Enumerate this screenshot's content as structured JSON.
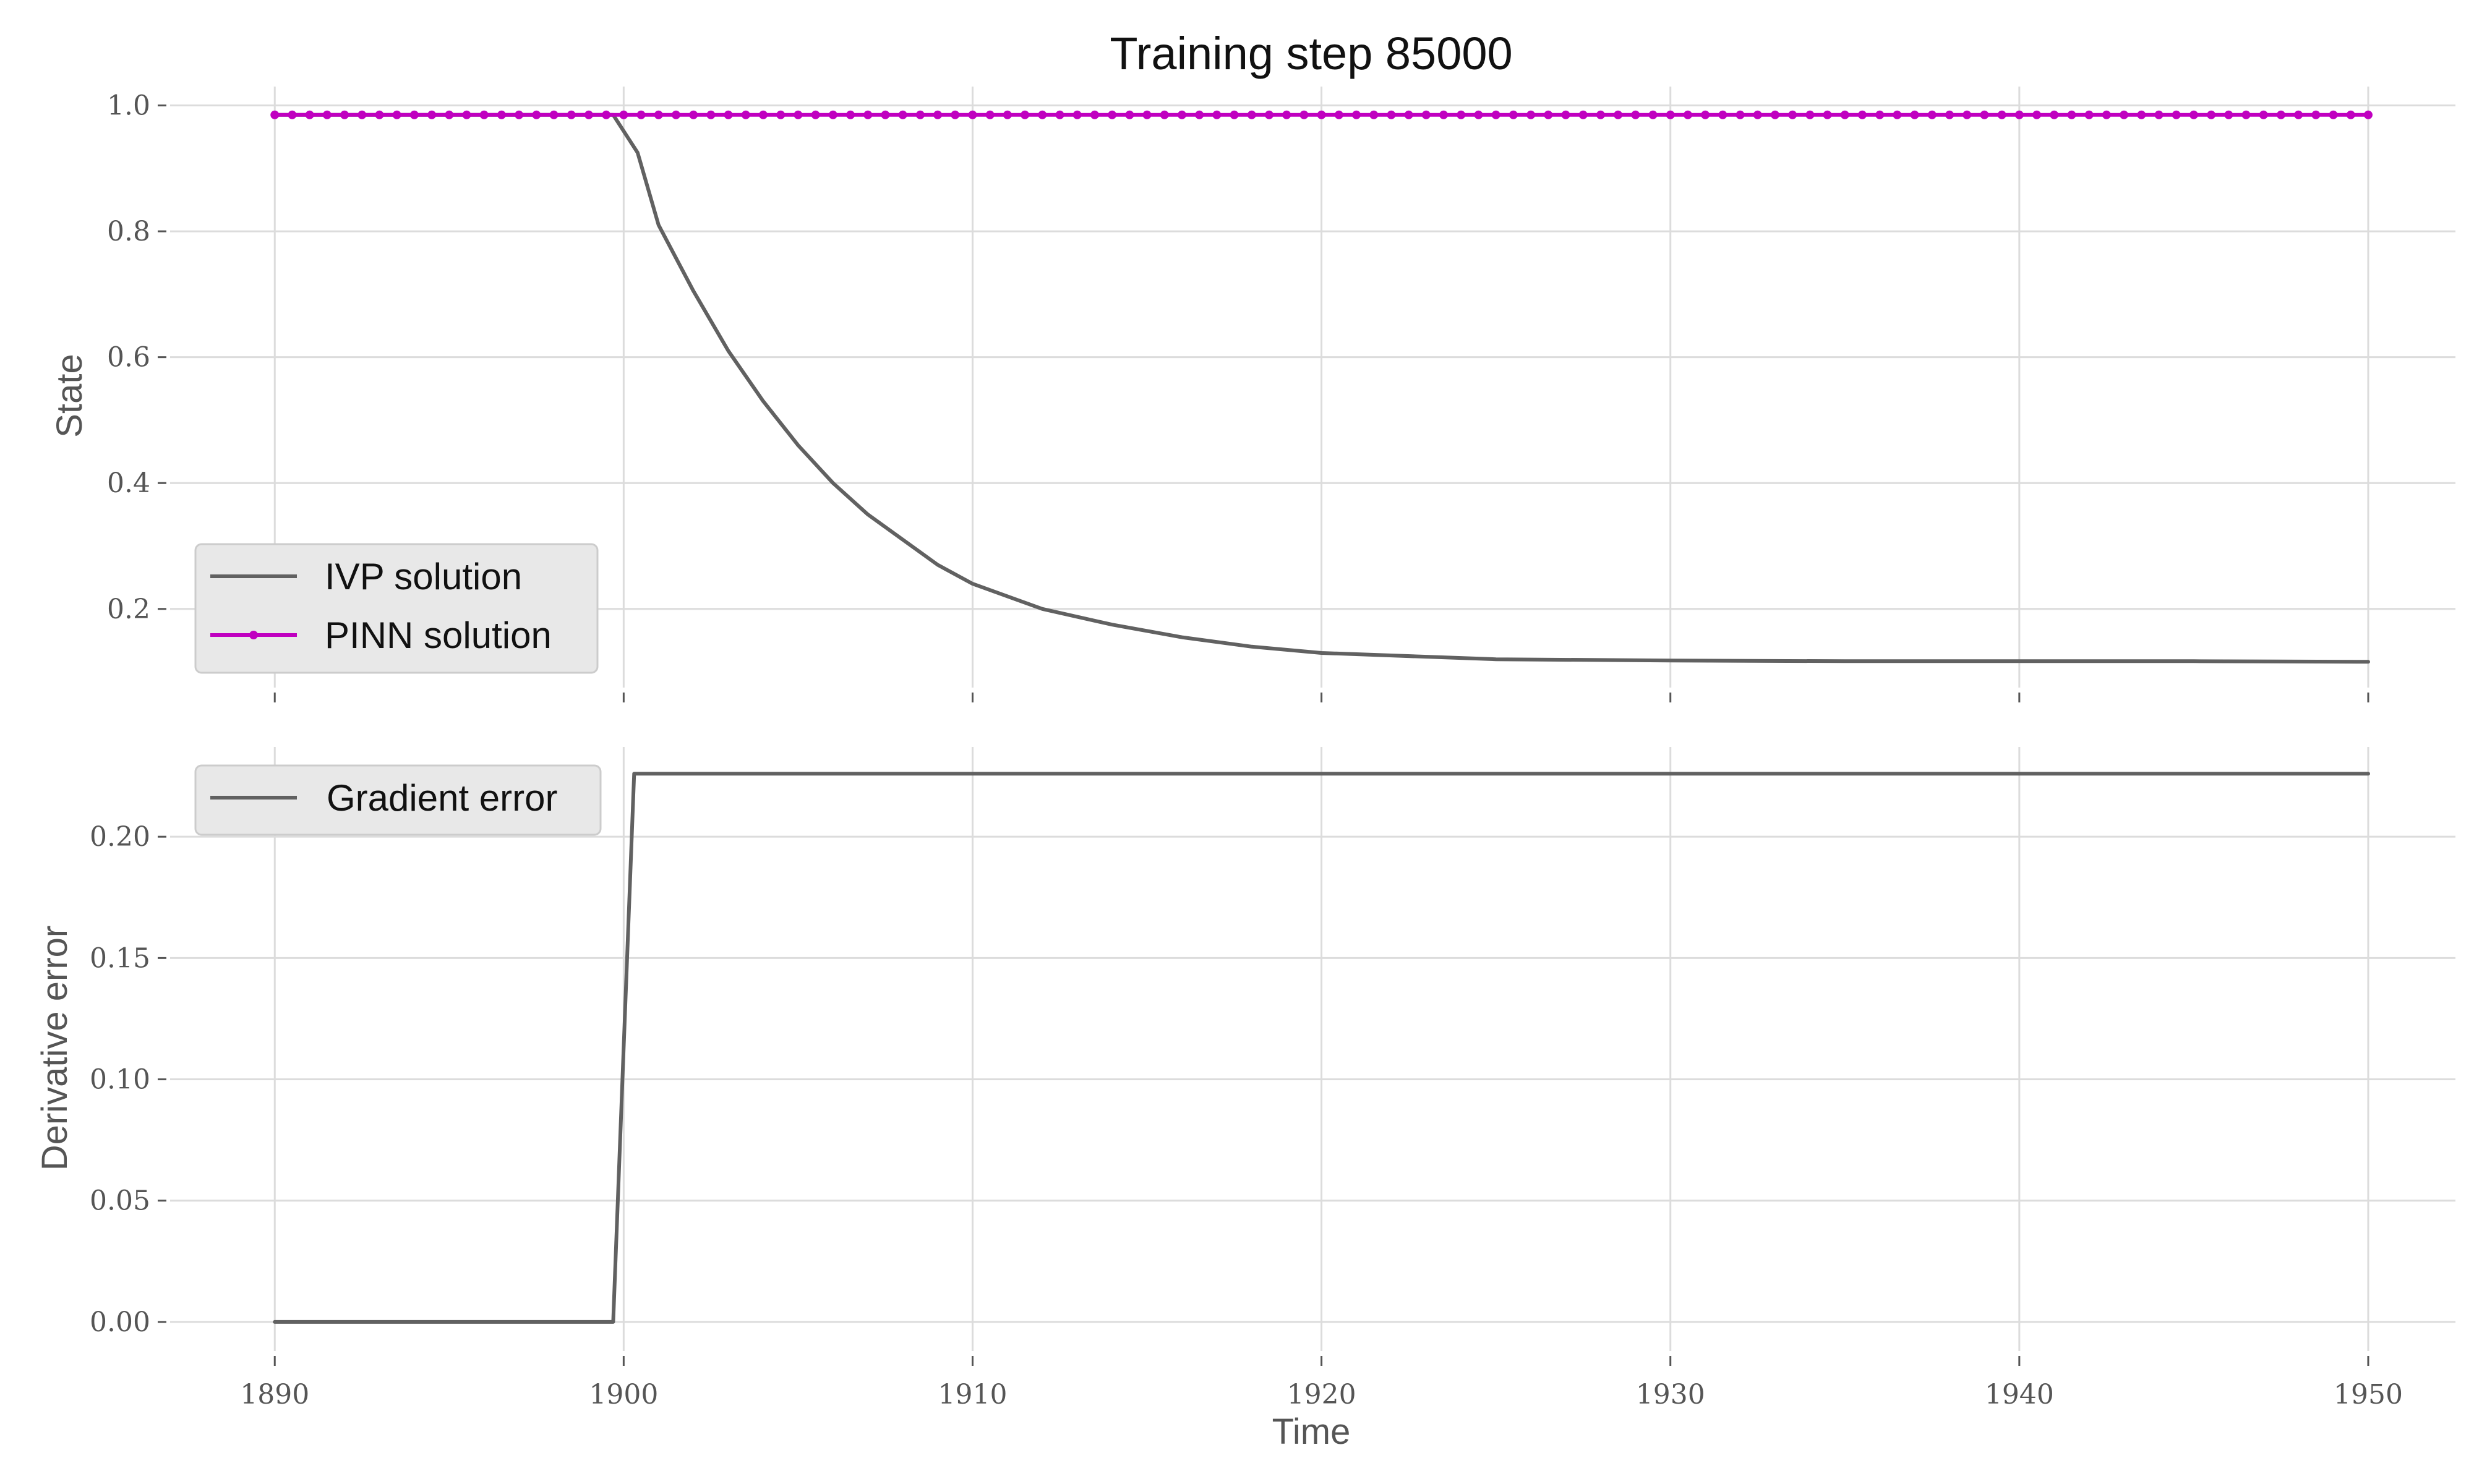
{
  "figure": {
    "title": "Training step 85000"
  },
  "colors": {
    "ivp": "#616161",
    "pinn": "#c000c0",
    "grid": "#dcdcdc",
    "legend_bg": "#e8e8e8"
  },
  "chart_data": [
    {
      "id": "state",
      "type": "line",
      "xlabel": "",
      "ylabel": "State",
      "xlim": [
        1887,
        1952.5
      ],
      "ylim": [
        0.075,
        1.03
      ],
      "xticks": [
        1890,
        1900,
        1910,
        1920,
        1930,
        1940,
        1950
      ],
      "xtick_labels": [],
      "yticks": [
        0.2,
        0.4,
        0.6,
        0.8,
        1.0
      ],
      "ytick_labels": [
        "0.2",
        "0.4",
        "0.6",
        "0.8",
        "1.0"
      ],
      "grid": true,
      "legend": {
        "position": "lower-left",
        "entries": [
          "IVP solution",
          "PINN solution"
        ]
      },
      "series": [
        {
          "name": "IVP solution",
          "color": "#616161",
          "x": [
            1890,
            1895,
            1899.7,
            1900.4,
            1901,
            1902,
            1903,
            1904,
            1905,
            1906,
            1907,
            1908,
            1909,
            1910,
            1912,
            1914,
            1916,
            1918,
            1920,
            1925,
            1930,
            1935,
            1940,
            1945,
            1950
          ],
          "y": [
            0.985,
            0.985,
            0.985,
            0.925,
            0.81,
            0.705,
            0.61,
            0.53,
            0.46,
            0.4,
            0.35,
            0.31,
            0.27,
            0.24,
            0.2,
            0.175,
            0.155,
            0.14,
            0.13,
            0.12,
            0.118,
            0.117,
            0.117,
            0.117,
            0.116
          ]
        },
        {
          "name": "PINN solution",
          "color": "#c000c0",
          "markers": true,
          "x_start": 1890,
          "x_end": 1950,
          "x_step": 0.5,
          "y_constant": 0.985
        }
      ]
    },
    {
      "id": "derivative",
      "type": "line",
      "xlabel": "Time",
      "ylabel": "Derivative error",
      "xlim": [
        1887,
        1952.5
      ],
      "ylim": [
        -0.012,
        0.237
      ],
      "xticks": [
        1890,
        1900,
        1910,
        1920,
        1930,
        1940,
        1950
      ],
      "xtick_labels": [
        "1890",
        "1900",
        "1910",
        "1920",
        "1930",
        "1940",
        "1950"
      ],
      "yticks": [
        0.0,
        0.05,
        0.1,
        0.15,
        0.2
      ],
      "ytick_labels": [
        "0.00",
        "0.05",
        "0.10",
        "0.15",
        "0.20"
      ],
      "grid": true,
      "legend": {
        "position": "upper-left",
        "entries": [
          "Gradient error"
        ]
      },
      "series": [
        {
          "name": "Gradient error",
          "color": "#616161",
          "x": [
            1890,
            1899.7,
            1900.3,
            1950
          ],
          "y": [
            0.0,
            0.0,
            0.226,
            0.226
          ]
        }
      ]
    }
  ]
}
